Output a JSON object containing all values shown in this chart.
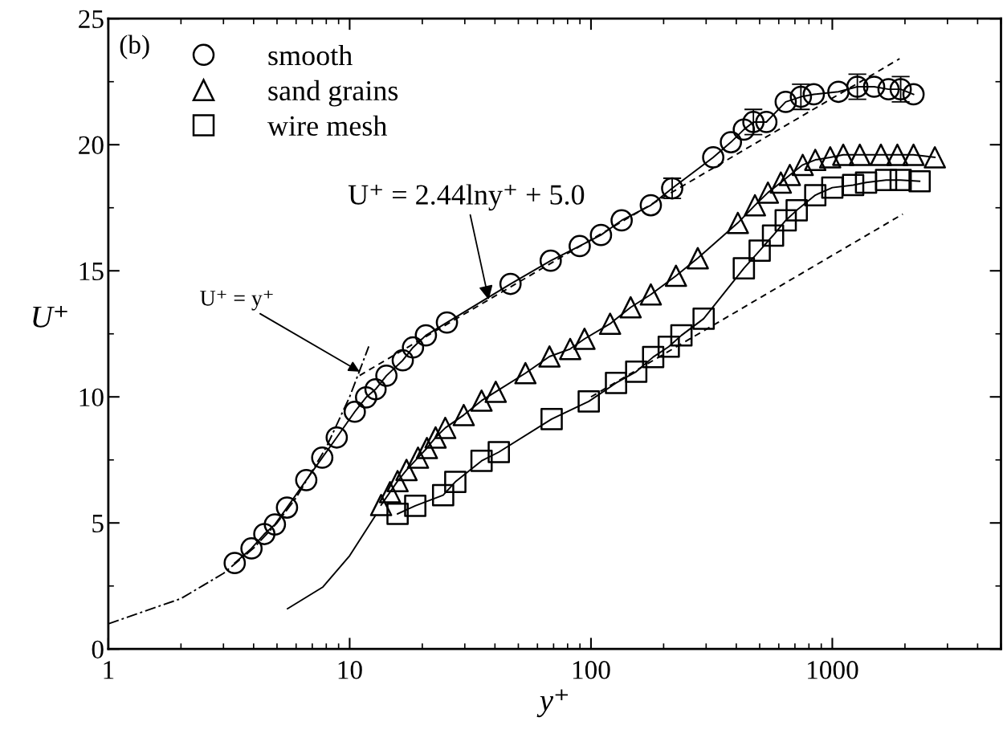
{
  "chart_data": {
    "type": "line",
    "xlabel": "y⁺",
    "ylabel": "U⁺",
    "log": "x",
    "xlim": [
      1,
      5000
    ],
    "xticks": [
      1,
      10,
      100,
      1000
    ],
    "ylim": [
      0,
      25
    ],
    "yticks": [
      0,
      5,
      10,
      15,
      20,
      25
    ],
    "grid": false,
    "legend": "top left",
    "annotations": [
      "(b)",
      {
        "text": "U⁺ = 2.44lny⁺ + 5.0",
        "x": 37.7,
        "y": 13.85
      },
      {
        "text": "U⁺ = y⁺",
        "x": 11.0,
        "y": 11.0
      }
    ],
    "series": [
      {
        "name": "smooth",
        "marker": "circle",
        "line_style": "solid",
        "color": "#000000",
        "x": [
          3.34,
          3.92,
          4.43,
          4.9,
          5.5,
          6.61,
          7.7,
          8.84,
          10.5,
          11.7,
          12.8,
          14.2,
          16.6,
          18.3,
          20.7,
          25.3,
          46.4,
          68.1,
          89.8,
          110,
          134,
          177,
          217,
          321,
          380,
          430,
          471,
          533,
          641,
          741,
          838,
          1060,
          1270,
          1490,
          1710,
          1920,
          2170
        ],
        "values": [
          3.41,
          3.99,
          4.56,
          4.94,
          5.61,
          6.7,
          7.59,
          8.39,
          9.41,
          9.98,
          10.3,
          10.84,
          11.45,
          11.96,
          12.44,
          12.95,
          14.48,
          15.4,
          15.98,
          16.42,
          17.0,
          17.6,
          18.27,
          19.5,
          20.1,
          20.6,
          20.9,
          20.9,
          21.7,
          21.9,
          22.0,
          22.1,
          22.3,
          22.3,
          22.2,
          22.2,
          22.0
        ],
        "errors": [
          null,
          null,
          null,
          null,
          null,
          null,
          null,
          null,
          null,
          null,
          null,
          null,
          null,
          null,
          null,
          null,
          null,
          null,
          null,
          null,
          null,
          null,
          0.4,
          null,
          null,
          null,
          0.5,
          null,
          null,
          0.5,
          null,
          null,
          0.5,
          null,
          null,
          0.5,
          null
        ]
      },
      {
        "name": "sand grains",
        "marker": "triangle",
        "line_style": "solid",
        "color": "#000000",
        "x": [
          13.5,
          14.7,
          15.8,
          17.2,
          19.2,
          20.9,
          22.7,
          24.9,
          29.7,
          35.2,
          40.3,
          53.5,
          67.3,
          82,
          94,
          120,
          146,
          177,
          225,
          277,
          406,
          478,
          541,
          612,
          667,
          754,
          850,
          980,
          1110,
          1300,
          1590,
          1860,
          2170,
          2660
        ],
        "values": [
          5.71,
          6.22,
          6.66,
          7.1,
          7.59,
          7.97,
          8.39,
          8.77,
          9.28,
          9.85,
          10.2,
          10.94,
          11.6,
          11.9,
          12.3,
          12.9,
          13.55,
          14.06,
          14.8,
          15.5,
          16.9,
          17.6,
          18.1,
          18.5,
          18.8,
          19.2,
          19.4,
          19.5,
          19.6,
          19.6,
          19.6,
          19.6,
          19.6,
          19.5
        ]
      },
      {
        "name": "wire mesh",
        "marker": "square",
        "line_style": "solid",
        "color": "#000000",
        "x": [
          15.8,
          18.7,
          24.4,
          27.4,
          35.2,
          41.5,
          68.7,
          97.9,
          127,
          154,
          181,
          210,
          237,
          293,
          430,
          500,
          568,
          641,
          712,
          850,
          1000,
          1220,
          1380,
          1670,
          1920,
          2300
        ],
        "values": [
          5.36,
          5.68,
          6.1,
          6.63,
          7.46,
          7.81,
          9.12,
          9.82,
          10.55,
          11.0,
          11.58,
          11.99,
          12.44,
          13.1,
          15.1,
          15.8,
          16.4,
          17.0,
          17.4,
          18.0,
          18.3,
          18.4,
          18.5,
          18.6,
          18.6,
          18.55
        ]
      },
      {
        "marker": "none",
        "line_style": "solid",
        "color": "#000000",
        "x": [
          5.53,
          7.75,
          10,
          12.8
        ],
        "values": [
          1.6,
          2.46,
          3.7,
          5.3
        ]
      },
      {
        "marker": "none",
        "line_style": "dashed",
        "color": "#000000",
        "x": [
          11,
          1900
        ],
        "values": [
          10.85,
          23.41
        ]
      },
      {
        "marker": "none",
        "line_style": "dashed",
        "color": "#000000",
        "x": [
          100,
          1960
        ],
        "values": [
          10.0,
          17.25
        ]
      },
      {
        "marker": "none",
        "line_style": "dashdot",
        "color": "#000000",
        "x": [
          1,
          2,
          3,
          4,
          5,
          6,
          8,
          10,
          12
        ],
        "values": [
          1,
          2,
          3,
          4,
          5,
          6,
          8,
          10,
          12
        ]
      }
    ]
  }
}
